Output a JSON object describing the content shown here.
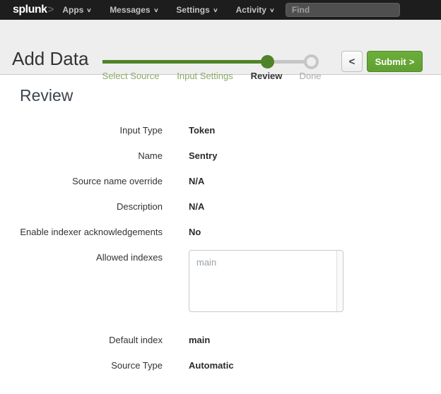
{
  "colors": {
    "topbar_bg": "#1d1d1d",
    "brand_green": "#65a637",
    "progress_green": "#4f8327",
    "header_bg": "#eeeeee"
  },
  "topbar": {
    "logo_text": "splunk",
    "logo_caret": ">",
    "chevron_glyph": "∨",
    "nav": [
      {
        "label": "Apps"
      },
      {
        "label": "Messages"
      },
      {
        "label": "Settings"
      },
      {
        "label": "Activity"
      }
    ],
    "find_placeholder": "Find"
  },
  "header": {
    "title": "Add Data",
    "steps": [
      {
        "label": "Select Source",
        "state": "done"
      },
      {
        "label": "Input Settings",
        "state": "done"
      },
      {
        "label": "Review",
        "state": "active"
      },
      {
        "label": "Done",
        "state": "upcoming"
      }
    ],
    "back_glyph": "<",
    "submit_label": "Submit",
    "submit_caret": ">"
  },
  "main": {
    "heading": "Review",
    "fields": [
      {
        "label": "Input Type",
        "value": "Token"
      },
      {
        "label": "Name",
        "value": "Sentry"
      },
      {
        "label": "Source name override",
        "value": "N/A"
      },
      {
        "label": "Description",
        "value": "N/A"
      },
      {
        "label": "Enable indexer acknowledgements",
        "value": "No"
      },
      {
        "label": "Allowed indexes",
        "value": "main"
      },
      {
        "label": "Default index",
        "value": "main"
      },
      {
        "label": "Source Type",
        "value": "Automatic"
      }
    ]
  }
}
